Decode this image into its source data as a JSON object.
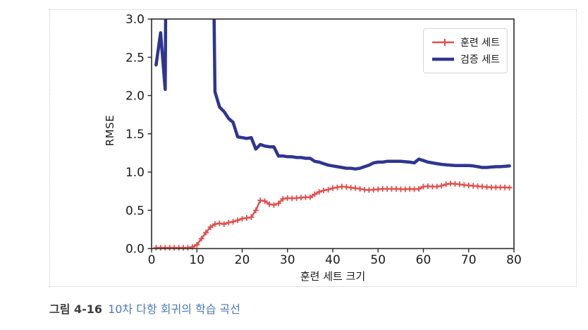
{
  "caption": {
    "label": "그림 4-16",
    "text": "10차 다항 회귀의 학습 곡선"
  },
  "colors": {
    "caption_label": "#3b3b3b",
    "caption_accent": "#4d7ab5",
    "axis_text": "#1a1a1a",
    "spine": "#2b2b2b",
    "figure_border": "#c8c8c8"
  },
  "chart_data": {
    "type": "line",
    "title": "",
    "xlabel": "훈련 세트 크기",
    "ylabel": "RMSE",
    "xlim": [
      0,
      80
    ],
    "ylim": [
      0.0,
      3.0
    ],
    "xtick_labels": [
      "0",
      "10",
      "20",
      "30",
      "40",
      "50",
      "60",
      "70",
      "80"
    ],
    "ytick_labels": [
      "0.0",
      "0.5",
      "1.0",
      "1.5",
      "2.0",
      "2.5",
      "3.0"
    ],
    "grid": false,
    "legend_position": "upper-right",
    "series": [
      {
        "name": "훈련 세트",
        "color": "#e0504d",
        "marker": "plus",
        "linewidth": 2.5,
        "x": [
          1,
          2,
          3,
          4,
          5,
          6,
          7,
          8,
          9,
          10,
          11,
          12,
          13,
          14,
          15,
          16,
          17,
          18,
          19,
          20,
          21,
          22,
          23,
          24,
          25,
          26,
          27,
          28,
          29,
          30,
          31,
          32,
          33,
          34,
          35,
          36,
          37,
          38,
          39,
          40,
          41,
          42,
          43,
          44,
          45,
          46,
          47,
          48,
          49,
          50,
          51,
          52,
          53,
          54,
          55,
          56,
          57,
          58,
          59,
          60,
          61,
          62,
          63,
          64,
          65,
          66,
          67,
          68,
          69,
          70,
          71,
          72,
          73,
          74,
          75,
          76,
          77,
          78,
          79
        ],
        "values": [
          0.01,
          0.01,
          0.01,
          0.01,
          0.01,
          0.01,
          0.01,
          0.01,
          0.02,
          0.05,
          0.13,
          0.21,
          0.28,
          0.32,
          0.33,
          0.32,
          0.34,
          0.35,
          0.37,
          0.39,
          0.4,
          0.41,
          0.5,
          0.63,
          0.62,
          0.58,
          0.57,
          0.59,
          0.65,
          0.66,
          0.655,
          0.66,
          0.665,
          0.67,
          0.67,
          0.71,
          0.74,
          0.76,
          0.77,
          0.79,
          0.8,
          0.81,
          0.805,
          0.795,
          0.79,
          0.78,
          0.77,
          0.765,
          0.77,
          0.775,
          0.78,
          0.78,
          0.78,
          0.78,
          0.775,
          0.775,
          0.78,
          0.775,
          0.78,
          0.81,
          0.815,
          0.81,
          0.81,
          0.82,
          0.84,
          0.85,
          0.845,
          0.84,
          0.83,
          0.825,
          0.82,
          0.815,
          0.81,
          0.805,
          0.8,
          0.8,
          0.8,
          0.8,
          0.795
        ]
      },
      {
        "name": "검증 세트",
        "color": "#2e3590",
        "marker": "none",
        "linewidth": 4.5,
        "x": [
          1,
          2,
          3,
          4,
          5,
          6,
          7,
          8,
          9,
          10,
          11,
          12,
          13,
          14,
          15,
          16,
          17,
          18,
          19,
          20,
          21,
          22,
          23,
          24,
          25,
          26,
          27,
          28,
          29,
          30,
          31,
          32,
          33,
          34,
          35,
          36,
          37,
          38,
          39,
          40,
          41,
          42,
          43,
          44,
          45,
          46,
          47,
          48,
          49,
          50,
          51,
          52,
          53,
          54,
          55,
          56,
          57,
          58,
          59,
          60,
          61,
          62,
          63,
          64,
          65,
          66,
          67,
          68,
          69,
          70,
          71,
          72,
          73,
          74,
          75,
          76,
          77,
          78,
          79
        ],
        "values": [
          2.4,
          2.82,
          2.08,
          12,
          12,
          12,
          12,
          12,
          12,
          12,
          12,
          12,
          7,
          2.05,
          1.85,
          1.79,
          1.7,
          1.65,
          1.46,
          1.45,
          1.44,
          1.45,
          1.3,
          1.36,
          1.34,
          1.33,
          1.33,
          1.21,
          1.21,
          1.2,
          1.2,
          1.19,
          1.19,
          1.18,
          1.18,
          1.14,
          1.13,
          1.11,
          1.09,
          1.08,
          1.07,
          1.06,
          1.05,
          1.05,
          1.04,
          1.05,
          1.07,
          1.09,
          1.12,
          1.13,
          1.13,
          1.14,
          1.14,
          1.14,
          1.14,
          1.135,
          1.13,
          1.12,
          1.17,
          1.15,
          1.13,
          1.12,
          1.11,
          1.1,
          1.095,
          1.09,
          1.085,
          1.085,
          1.085,
          1.085,
          1.08,
          1.07,
          1.06,
          1.06,
          1.065,
          1.07,
          1.07,
          1.075,
          1.08
        ]
      }
    ]
  }
}
